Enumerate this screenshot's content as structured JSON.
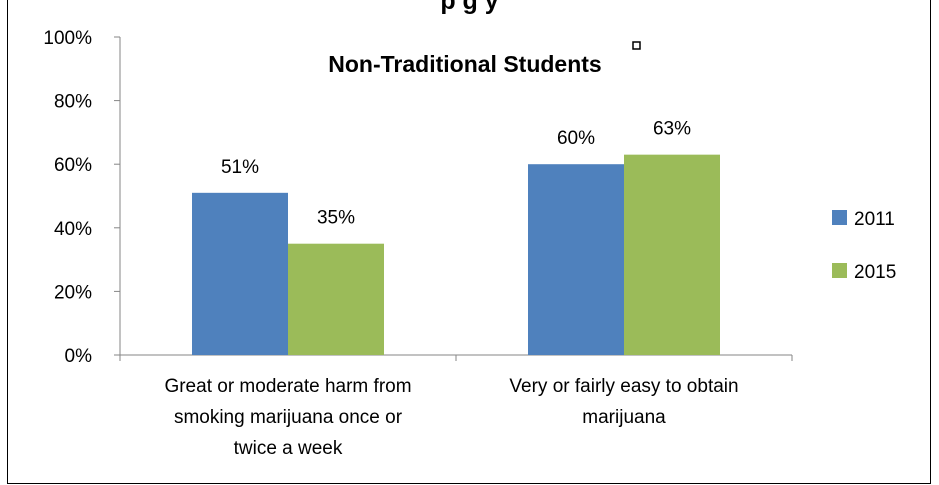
{
  "chart_data": {
    "type": "bar",
    "title_clipped": "p                                    g  y",
    "title": "Non-Traditional Students",
    "title_marker": "¤",
    "categories": [
      [
        "Great or moderate harm from",
        "smoking marijuana once or",
        "twice a week"
      ],
      [
        "Very or fairly easy to obtain",
        "marijuana"
      ]
    ],
    "series": [
      {
        "name": "2011",
        "color": "#4f81bd",
        "values": [
          51,
          60
        ],
        "labels": [
          "51%",
          "60%"
        ]
      },
      {
        "name": "2015",
        "color": "#9bbb59",
        "values": [
          35,
          63
        ],
        "labels": [
          "35%",
          "63%"
        ]
      }
    ],
    "ylim": [
      0,
      100
    ],
    "yticks": [
      0,
      20,
      40,
      60,
      80,
      100
    ],
    "ytick_labels": [
      "0%",
      "20%",
      "40%",
      "60%",
      "80%",
      "100%"
    ],
    "grid": false,
    "legend_position": "right"
  }
}
